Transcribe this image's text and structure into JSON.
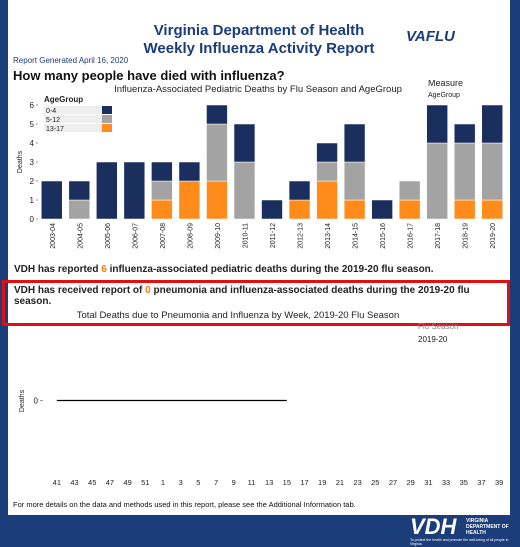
{
  "header": {
    "title_line1": "Virginia Department of Health",
    "title_line2": "Weekly Influenza Activity Report",
    "logo": "VAFLU",
    "report_generated": "Report Generated April 16, 2020",
    "question": "How many people have died with influenza?"
  },
  "chart_data": [
    {
      "type": "bar",
      "stacked": true,
      "title": "Influenza-Associated Pediatric Deaths by Flu Season and AgeGroup",
      "legend_title": "AgeGroup",
      "side_label": "Measure",
      "side_sublabel": "AgeGroup",
      "ylabel": "Deaths",
      "categories": [
        "2003-04",
        "2004-05",
        "2005-06",
        "2006-07",
        "2007-08",
        "2008-09",
        "2009-10",
        "2010-11",
        "2011-12",
        "2012-13",
        "2013-14",
        "2014-15",
        "2015-16",
        "2016-17",
        "2017-18",
        "2018-19",
        "2019-20"
      ],
      "series": [
        {
          "name": "13-17",
          "color": "#ff8c1a",
          "values": [
            0,
            0,
            0,
            0,
            1,
            2,
            2,
            0,
            0,
            1,
            2,
            1,
            0,
            1,
            0,
            1,
            1
          ]
        },
        {
          "name": "5-12",
          "color": "#a3a3a3",
          "values": [
            0,
            1,
            0,
            0,
            1,
            0,
            3,
            3,
            0,
            0,
            1,
            2,
            0,
            1,
            4,
            3,
            3
          ]
        },
        {
          "name": "0-4",
          "color": "#1b2f5e",
          "values": [
            2,
            1,
            3,
            3,
            1,
            1,
            1,
            2,
            1,
            1,
            1,
            2,
            1,
            0,
            2,
            1,
            2
          ]
        }
      ],
      "ylim": [
        0,
        6
      ],
      "yticks": [
        0,
        1,
        2,
        3,
        4,
        5,
        6
      ]
    },
    {
      "type": "line",
      "title": "Total Deaths due to Pneumonia and Influenza by Week, 2019-20 Flu Season",
      "legend_title": "Flu Season",
      "ylabel": "Deaths",
      "categories": [
        "41",
        "43",
        "45",
        "47",
        "49",
        "51",
        "1",
        "3",
        "5",
        "7",
        "9",
        "11",
        "13",
        "15",
        "17",
        "19",
        "21",
        "23",
        "25",
        "27",
        "29",
        "31",
        "33",
        "35",
        "37",
        "39"
      ],
      "series": [
        {
          "name": "2019-20",
          "color": "#000000",
          "values": [
            0,
            0,
            0,
            0,
            0,
            0,
            0,
            0,
            0,
            0,
            0,
            0,
            0,
            0,
            null,
            null,
            null,
            null,
            null,
            null,
            null,
            null,
            null,
            null,
            null,
            null
          ]
        }
      ],
      "ylim": [
        -1,
        1
      ],
      "yticks": [
        0
      ]
    }
  ],
  "statements": [
    {
      "pre": "VDH has reported ",
      "number": "6",
      "post": " influenza-associated pediatric deaths during the 2019-20 flu season."
    },
    {
      "pre": "VDH has received report of ",
      "number": "0",
      "post": " pneumonia and influenza-associated  deaths during the 2019-20 flu season."
    }
  ],
  "footer": {
    "note": "For more details on the data and methods used in this report, please see the Additional Information tab.",
    "logo": "VDH",
    "dept": "VIRGINIA DEPARTMENT OF HEALTH",
    "tagline": "To protect the health and promote the well-being of all people in Virginia."
  }
}
